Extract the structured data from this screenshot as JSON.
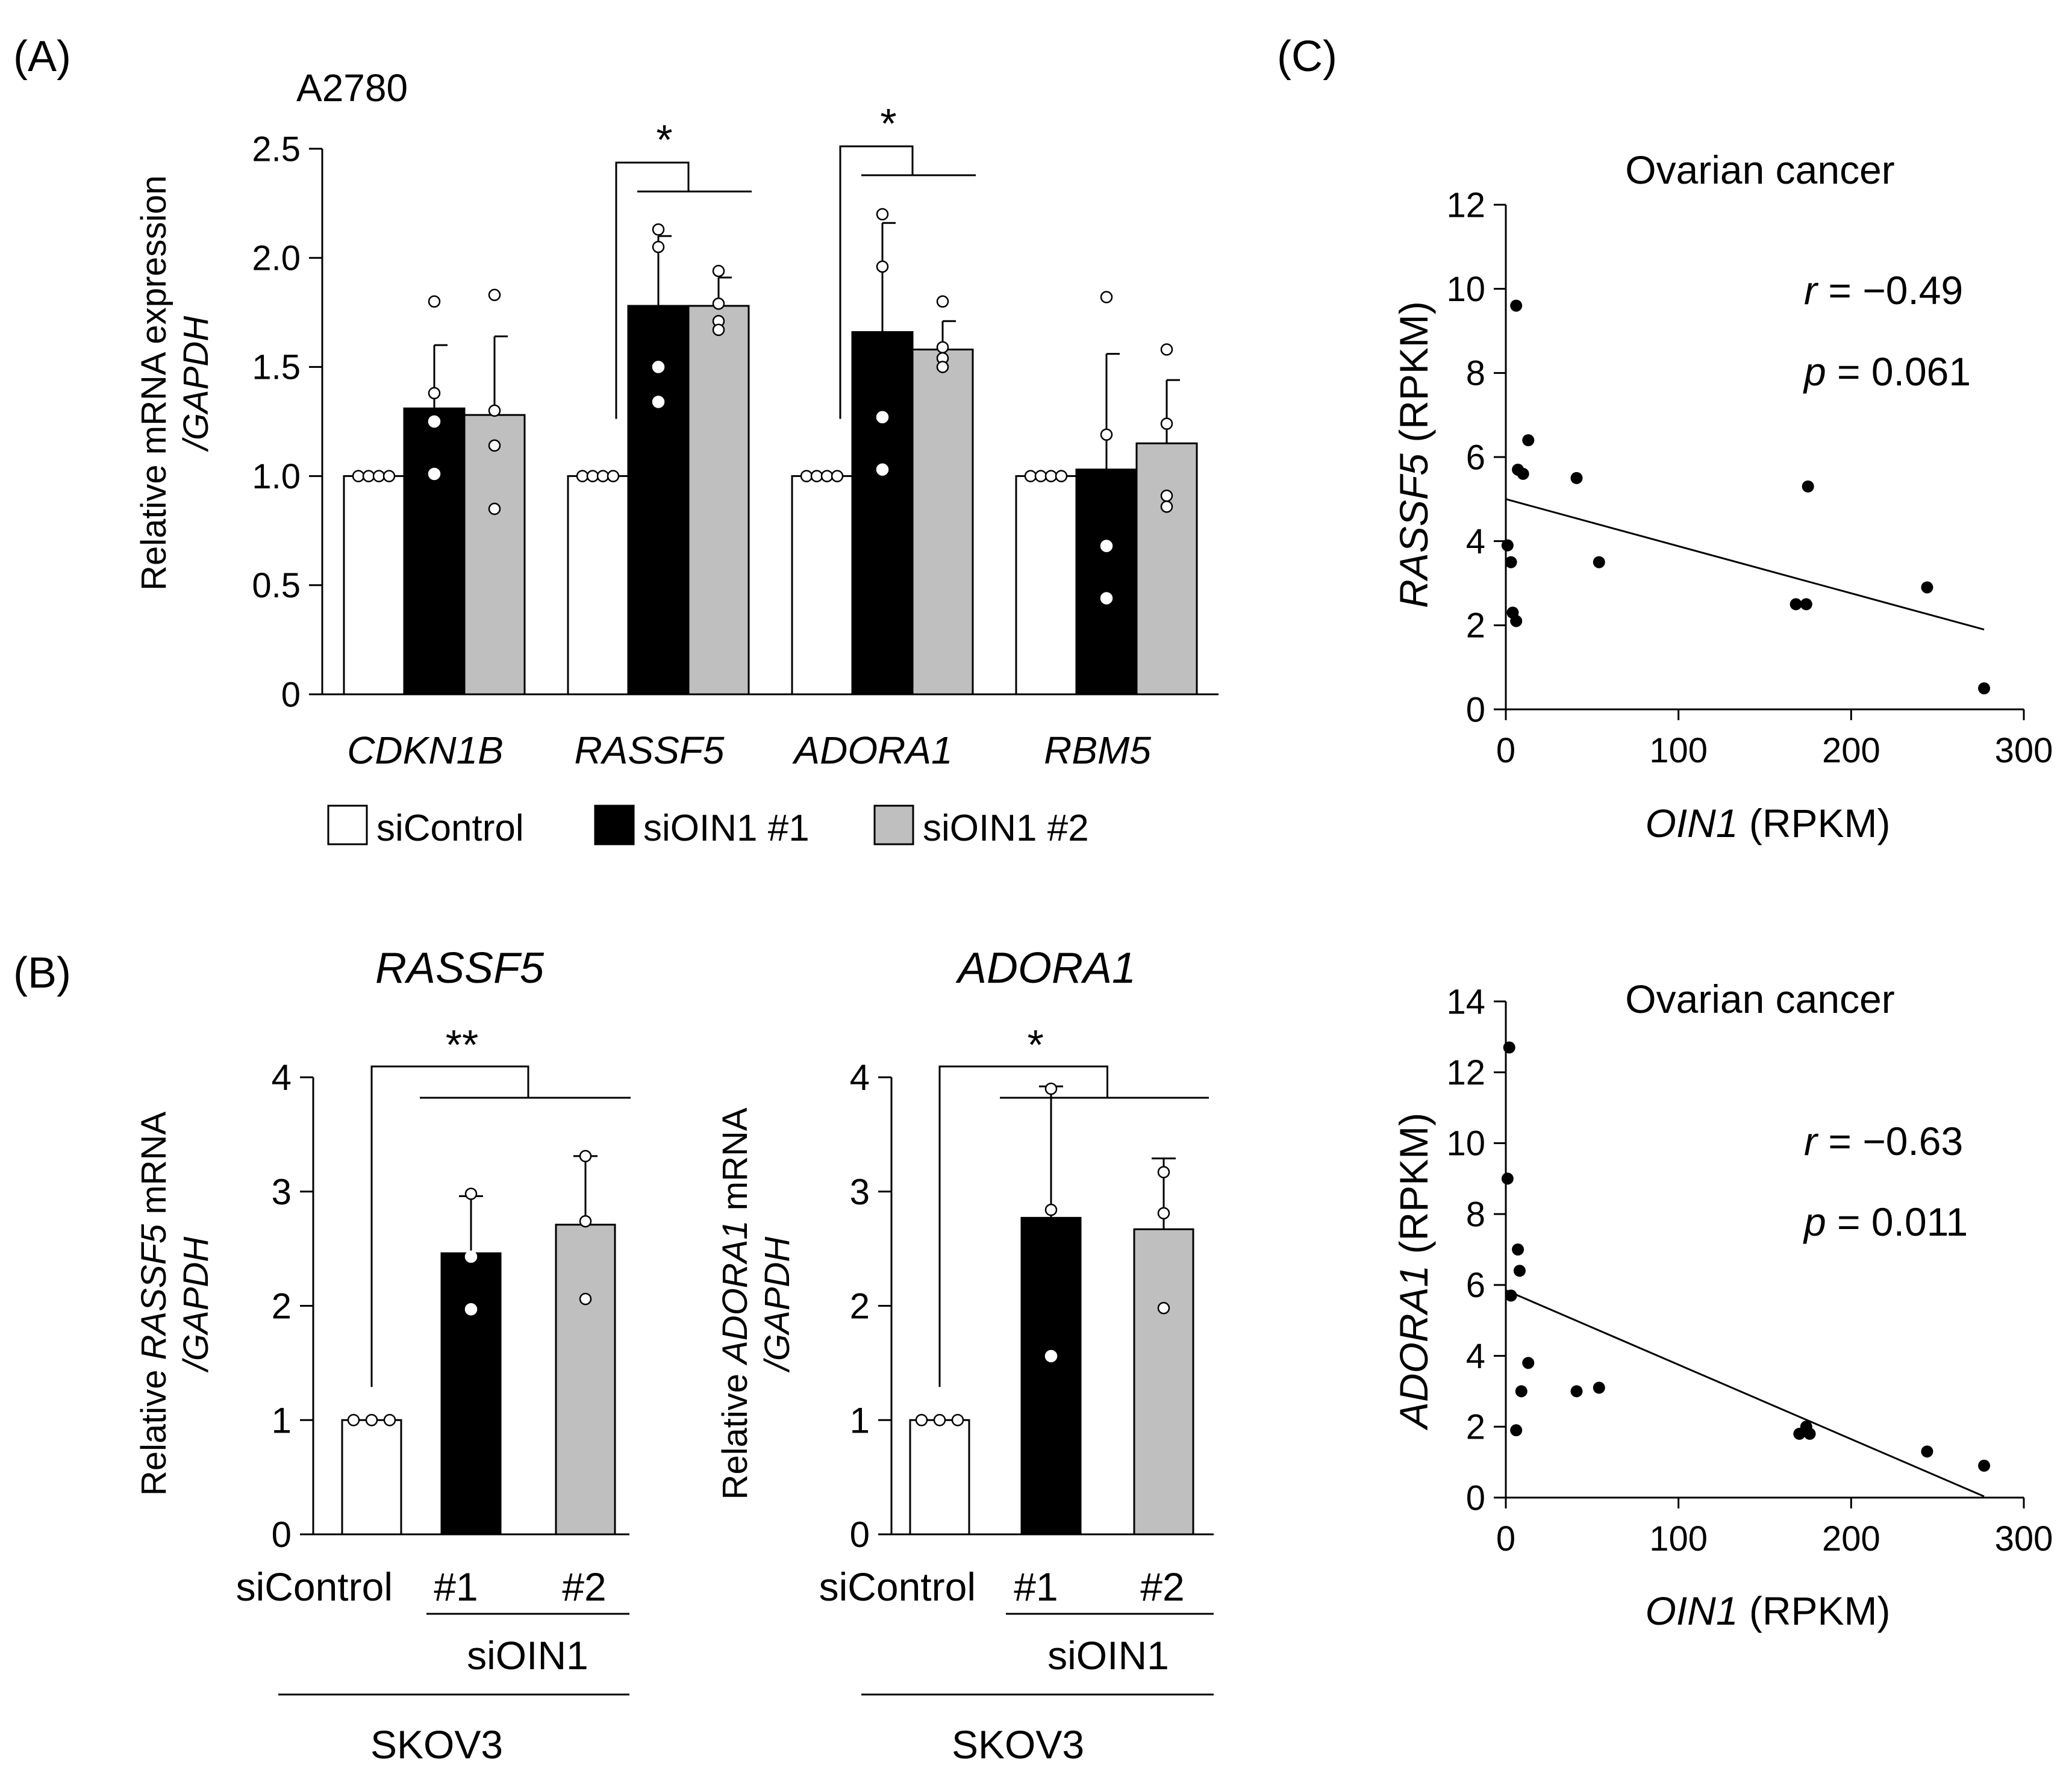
{
  "panels": {
    "A": {
      "label": "(A)",
      "cell_line": "A2780"
    },
    "B": {
      "label": "(B)"
    },
    "C": {
      "label": "(C)"
    }
  },
  "chart_data": [
    {
      "id": "A",
      "type": "bar",
      "title": "A2780",
      "ylabel_line1": "Relative mRNA expression",
      "ylabel_line2": "/GAPDH",
      "ylim": [
        0,
        2.5
      ],
      "yticks": [
        "0",
        "0.5",
        "1.0",
        "1.5",
        "2.0",
        "2.5"
      ],
      "categories": [
        "CDKN1B",
        "RASSF5",
        "ADORA1",
        "RBM5"
      ],
      "series": [
        {
          "name": "siControl",
          "color": "#ffffff",
          "values": [
            1.0,
            1.0,
            1.0,
            1.0
          ],
          "errors": [
            0,
            0,
            0,
            0
          ],
          "points": [
            [
              1,
              1,
              1,
              1
            ],
            [
              1,
              1,
              1,
              1
            ],
            [
              1,
              1,
              1,
              1
            ],
            [
              1,
              1,
              1,
              1
            ]
          ]
        },
        {
          "name": "siOIN1 #1",
          "color": "#000000",
          "values": [
            1.31,
            1.78,
            1.66,
            1.03
          ],
          "errors": [
            0.29,
            0.32,
            0.5,
            0.53
          ],
          "points": [
            [
              1.8,
              1.38,
              1.25,
              1.01
            ],
            [
              2.13,
              2.05,
              1.5,
              1.34
            ],
            [
              2.2,
              1.96,
              1.27,
              1.03
            ],
            [
              1.82,
              1.19,
              0.68,
              0.44
            ]
          ]
        },
        {
          "name": "siOIN1 #2",
          "color": "#bfbfbf",
          "values": [
            1.28,
            1.78,
            1.58,
            1.15
          ],
          "errors": [
            0.36,
            0.13,
            0.13,
            0.29
          ],
          "points": [
            [
              1.83,
              1.3,
              1.14,
              0.85
            ],
            [
              1.94,
              1.79,
              1.71,
              1.67
            ],
            [
              1.8,
              1.59,
              1.54,
              1.5
            ],
            [
              1.58,
              1.24,
              0.91,
              0.86
            ]
          ]
        }
      ],
      "significance": [
        {
          "category": "RASSF5",
          "label": "*"
        },
        {
          "category": "ADORA1",
          "label": "*"
        }
      ],
      "legend": [
        "siControl",
        "siOIN1 #1",
        "siOIN1 #2"
      ]
    },
    {
      "id": "B1",
      "type": "bar",
      "title": "RASSF5",
      "ylabel_part1": "Relative ",
      "ylabel_gene": "RASSF5",
      "ylabel_part2": " mRNA",
      "ylabel_line2": "/GAPDH",
      "ylim": [
        0,
        4
      ],
      "yticks": [
        "0",
        "1",
        "2",
        "3",
        "4"
      ],
      "categories": [
        "siControl",
        "#1",
        "#2"
      ],
      "values": [
        1.0,
        2.46,
        2.71
      ],
      "errors": [
        0,
        0.5,
        0.6
      ],
      "points": [
        [
          1,
          1,
          1
        ],
        [
          2.98,
          2.43,
          1.97
        ],
        [
          3.31,
          2.74,
          2.06
        ]
      ],
      "colors": [
        "#ffffff",
        "#000000",
        "#bfbfbf"
      ],
      "group_label": "siOIN1",
      "cell_line": "SKOV3",
      "significance": "**"
    },
    {
      "id": "B2",
      "type": "bar",
      "title": "ADORA1",
      "ylabel_part1": "Relative ",
      "ylabel_gene": "ADORA1",
      "ylabel_part2": " mRNA",
      "ylabel_line2": "/GAPDH",
      "ylim": [
        0,
        4
      ],
      "yticks": [
        "0",
        "1",
        "2",
        "3",
        "4"
      ],
      "categories": [
        "siControl",
        "#1",
        "#2"
      ],
      "values": [
        1.0,
        2.77,
        2.67
      ],
      "errors": [
        0,
        1.15,
        0.62
      ],
      "points": [
        [
          1,
          1,
          1
        ],
        [
          3.9,
          2.84,
          1.56
        ],
        [
          3.17,
          2.81,
          1.98
        ]
      ],
      "colors": [
        "#ffffff",
        "#000000",
        "#bfbfbf"
      ],
      "group_label": "siOIN1",
      "cell_line": "SKOV3",
      "significance": "*"
    },
    {
      "id": "C1",
      "type": "scatter",
      "title": "Ovarian cancer",
      "xlabel_gene": "OIN1",
      "xlabel_unit": " (RPKM)",
      "ylabel_gene": "RASSF5",
      "ylabel_unit": " (RPKM)",
      "xlim": [
        0,
        300
      ],
      "ylim": [
        0,
        12
      ],
      "xticks": [
        "0",
        "100",
        "200",
        "300"
      ],
      "yticks": [
        "0",
        "2",
        "4",
        "6",
        "8",
        "10",
        "12"
      ],
      "x": [
        6,
        7,
        10,
        13,
        41,
        54,
        1,
        3,
        4,
        6,
        168,
        174,
        244,
        277,
        175
      ],
      "y": [
        9.6,
        5.7,
        5.6,
        6.4,
        5.5,
        3.5,
        3.9,
        3.5,
        2.3,
        2.1,
        2.5,
        2.5,
        2.9,
        0.5,
        5.3
      ],
      "fit": {
        "slope": -0.0112,
        "intercept": 5.0
      },
      "r_label": "r",
      "r_value": " = −0.49",
      "p_label": "p",
      "p_value": " = 0.061"
    },
    {
      "id": "C2",
      "type": "scatter",
      "title": "Ovarian cancer",
      "xlabel_gene": "OIN1",
      "xlabel_unit": " (RPKM)",
      "ylabel_gene": "ADORA1",
      "ylabel_unit": " (RPKM)",
      "xlim": [
        0,
        300
      ],
      "ylim": [
        0,
        14
      ],
      "xticks": [
        "0",
        "100",
        "200",
        "300"
      ],
      "yticks": [
        "0",
        "2",
        "4",
        "6",
        "8",
        "10",
        "12",
        "14"
      ],
      "x": [
        2,
        1,
        7,
        8,
        3,
        13,
        9,
        41,
        54,
        6,
        170,
        174,
        176,
        244,
        277
      ],
      "y": [
        12.7,
        9.0,
        7.0,
        6.4,
        5.7,
        3.8,
        3.0,
        3.0,
        3.1,
        1.9,
        1.8,
        2.0,
        1.8,
        1.3,
        0.9
      ],
      "fit": {
        "slope": -0.021,
        "intercept": 5.85
      },
      "r_label": "r",
      "r_value": " = −0.63",
      "p_label": "p",
      "p_value": " = 0.011"
    }
  ]
}
